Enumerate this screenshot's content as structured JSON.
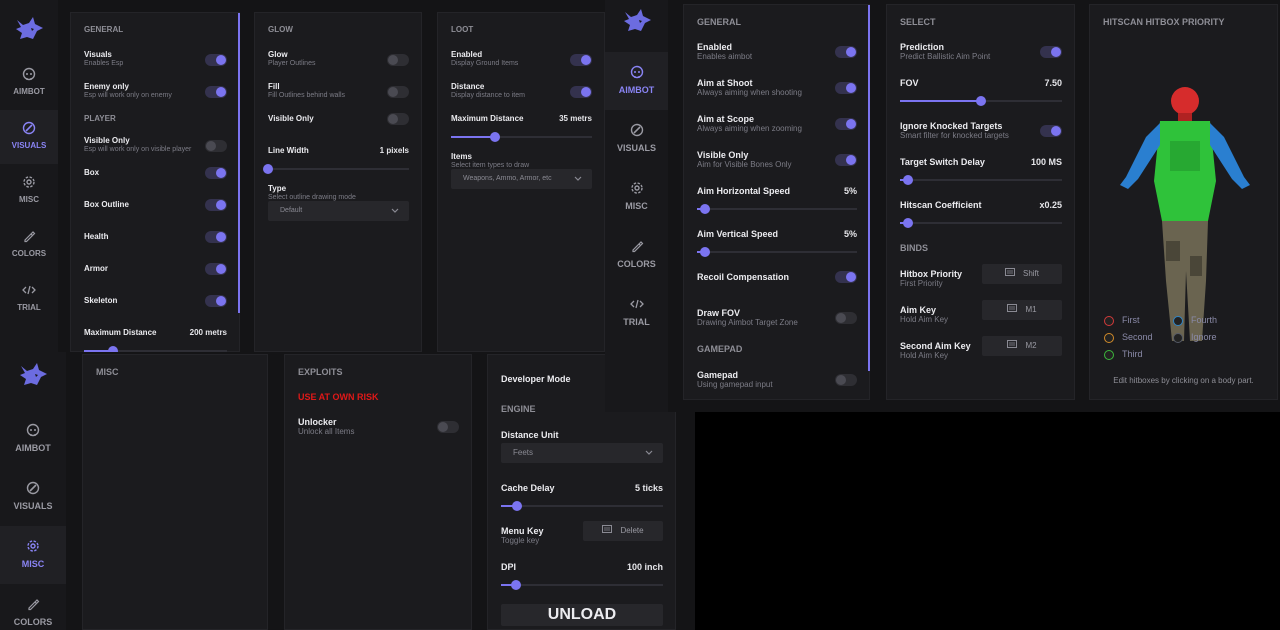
{
  "screens": [
    {
      "sidebar": [
        "AIMBOT",
        "VISUALS",
        "MISC",
        "COLORS",
        "TRIAL"
      ],
      "active": 1,
      "panels": [
        {
          "title": "GENERAL",
          "rows": [
            {
              "type": "toggle",
              "label": "Visuals",
              "sub": "Enables Esp",
              "on": true
            },
            {
              "type": "toggle",
              "label": "Enemy only",
              "sub": "Esp will work only on enemy",
              "on": true
            },
            {
              "type": "section",
              "label": "PLAYER"
            },
            {
              "type": "toggle",
              "label": "Visible Only",
              "sub": "Esp will work only on visible player",
              "on": false
            },
            {
              "type": "toggle",
              "label": "Box",
              "on": true
            },
            {
              "type": "toggle",
              "label": "Box Outline",
              "on": true
            },
            {
              "type": "toggle",
              "label": "Health",
              "on": true
            },
            {
              "type": "toggle",
              "label": "Armor",
              "on": true
            },
            {
              "type": "toggle",
              "label": "Skeleton",
              "on": true
            },
            {
              "type": "slider",
              "label": "Maximum Distance",
              "value": "200 metrs"
            }
          ]
        },
        {
          "title": "GLOW",
          "rows": [
            {
              "type": "toggle",
              "label": "Glow",
              "sub": "Player Outlines",
              "on": false
            },
            {
              "type": "toggle",
              "label": "Fill",
              "sub": "Fill Outlines behind walls",
              "on": false
            },
            {
              "type": "toggle",
              "label": "Visible Only",
              "on": false
            },
            {
              "type": "slider",
              "label": "Line Width",
              "value": "1 pixels"
            },
            {
              "type": "dropdown",
              "label": "Type",
              "sub": "Select outline drawing mode",
              "value": "Default"
            }
          ]
        },
        {
          "title": "LOOT",
          "rows": [
            {
              "type": "toggle",
              "label": "Enabled",
              "sub": "Display Ground Items",
              "on": true
            },
            {
              "type": "toggle",
              "label": "Distance",
              "sub": "Display distance to item",
              "on": true
            },
            {
              "type": "slider",
              "label": "Maximum Distance",
              "value": "35 metrs"
            },
            {
              "type": "dropdown",
              "label": "Items",
              "sub": "Select item types to draw",
              "value": "Weapons, Ammo, Armor, etc"
            }
          ]
        }
      ]
    },
    {
      "sidebar": [
        "AIMBOT",
        "VISUALS",
        "MISC",
        "COLORS",
        "TRIAL"
      ],
      "active": 0,
      "panels": [
        {
          "title": "GENERAL",
          "rows": [
            {
              "type": "toggle",
              "label": "Enabled",
              "sub": "Enables aimbot",
              "on": true
            },
            {
              "type": "toggle",
              "label": "Aim at Shoot",
              "sub": "Always aiming when shooting",
              "on": true
            },
            {
              "type": "toggle",
              "label": "Aim at Scope",
              "sub": "Always aiming when zooming",
              "on": true
            },
            {
              "type": "toggle",
              "label": "Visible Only",
              "sub": "Aim for Visible Bones Only",
              "on": true
            },
            {
              "type": "slider",
              "label": "Aim Horizontal Speed",
              "value": "5%"
            },
            {
              "type": "slider",
              "label": "Aim Vertical Speed",
              "value": "5%"
            },
            {
              "type": "toggle",
              "label": "Recoil Compensation",
              "on": true
            },
            {
              "type": "toggle",
              "label": "Draw FOV",
              "sub": "Drawing Aimbot Target Zone",
              "on": false
            },
            {
              "type": "section",
              "label": "GAMEPAD"
            },
            {
              "type": "toggle",
              "label": "Gamepad",
              "sub": "Using gamepad input",
              "on": false
            }
          ]
        },
        {
          "title": "SELECT",
          "rows": [
            {
              "type": "toggle",
              "label": "Prediction",
              "sub": "Predict Ballistic Aim Point",
              "on": true
            },
            {
              "type": "slider",
              "label": "FOV",
              "value": "7.50"
            },
            {
              "type": "toggle",
              "label": "Ignore Knocked Targets",
              "sub": "Smart filter for knocked targets",
              "on": true
            },
            {
              "type": "slider",
              "label": "Target Switch Delay",
              "value": "100 MS"
            },
            {
              "type": "slider",
              "label": "Hitscan Coefficient",
              "value": "x0.25"
            },
            {
              "type": "section",
              "label": "BINDS"
            },
            {
              "type": "key",
              "label": "Hitbox Priority",
              "sub": "First Priority",
              "value": "Shift"
            },
            {
              "type": "key",
              "label": "Aim Key",
              "sub": "Hold Aim Key",
              "value": "M1"
            },
            {
              "type": "key",
              "label": "Second Aim Key",
              "sub": "Hold Aim Key",
              "value": "M2"
            }
          ]
        },
        {
          "title": "HITSCAN HITBOX PRIORITY",
          "type": "hitbox",
          "legend": [
            {
              "label": "First",
              "color": "#d23a3a"
            },
            {
              "label": "Second",
              "color": "#d08a2a"
            },
            {
              "label": "Third",
              "color": "#3cb83c"
            },
            {
              "label": "Fourth",
              "color": "#2f86c8"
            },
            {
              "label": "Ignore",
              "color": "#555a66"
            }
          ],
          "note": "Edit hitboxes by clicking on a body part."
        }
      ]
    },
    {
      "sidebar": [
        "AIMBOT",
        "VISUALS",
        "MISC",
        "COLORS"
      ],
      "active": 2,
      "panels": [
        {
          "title": "MISC",
          "rows": []
        },
        {
          "title": "EXPLOITS",
          "rows": [
            {
              "type": "warning",
              "label": "USE AT OWN RISK"
            },
            {
              "type": "toggle",
              "label": "Unlocker",
              "sub": "Unlock all Items",
              "on": false
            }
          ]
        },
        {
          "rows": [
            {
              "type": "label",
              "label": "Developer Mode"
            },
            {
              "type": "section",
              "label": "ENGINE"
            },
            {
              "type": "dropdown",
              "label": "Distance Unit",
              "value": "Feets"
            },
            {
              "type": "slider",
              "label": "Cache Delay",
              "value": "5 ticks"
            },
            {
              "type": "key",
              "label": "Menu Key",
              "sub": "Toggle key",
              "value": "Delete"
            },
            {
              "type": "slider",
              "label": "DPI",
              "value": "100 inch"
            },
            {
              "type": "button",
              "label": "UNLOAD"
            }
          ]
        }
      ]
    }
  ]
}
